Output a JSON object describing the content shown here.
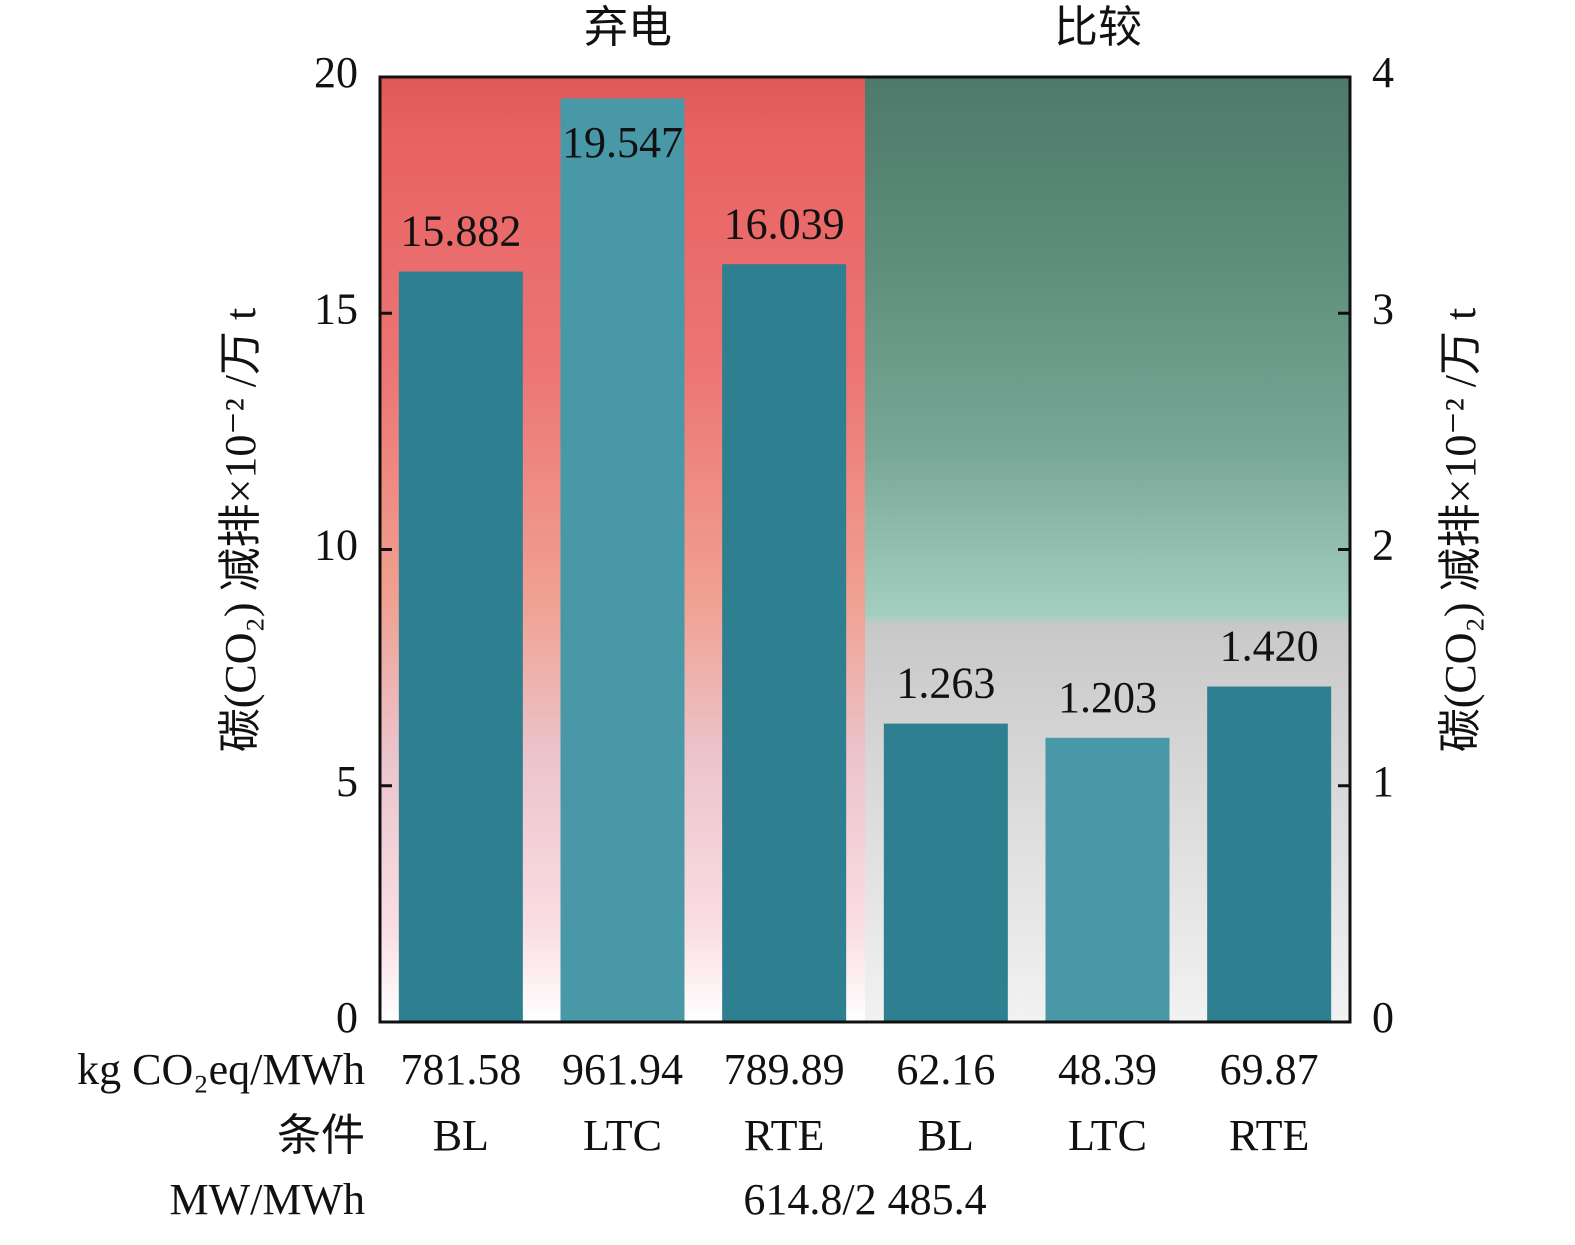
{
  "chart_data": {
    "type": "bar",
    "group_labels": [
      "弃电",
      "比较"
    ],
    "group_label_colors": [
      "#a02050",
      "#4a5a9a"
    ],
    "categories": [
      "BL",
      "LTC",
      "RTE",
      "BL",
      "LTC",
      "RTE"
    ],
    "category_label": "条件",
    "series": [
      {
        "colors": [
          "#2e7f8f",
          "#4898a8",
          "#2e7f8f",
          "#2e7f8f",
          "#4898a8",
          "#2e7f8f"
        ],
        "values": [
          15.882,
          19.547,
          16.039,
          null,
          null,
          null
        ],
        "value_labels": [
          "15.882",
          "19.547",
          "16.039",
          null,
          null,
          null
        ]
      },
      {
        "axis": "y2",
        "colors": [
          "#2e7f8f",
          "#4898a8",
          "#2e7f8f",
          "#2e7f8f",
          "#4898a8",
          "#2e7f8f"
        ],
        "values": [
          null,
          null,
          null,
          1.263,
          1.203,
          1.42
        ],
        "value_labels": [
          null,
          null,
          null,
          "1.263",
          "1.203",
          "1.420"
        ]
      }
    ],
    "ylabel": "碳(CO₂) 减排×10⁻² /万 t",
    "y2label": "碳(CO₂) 减排×10⁻² /万 t",
    "ylim": [
      0,
      20
    ],
    "yticks": [
      0,
      5,
      10,
      15,
      20
    ],
    "y2lim": [
      0,
      4
    ],
    "y2ticks": [
      0,
      1,
      2,
      3,
      4
    ],
    "intensity_label": "kg CO₂eq/MWh",
    "intensity": [
      781.58,
      961.94,
      789.89,
      62.16,
      48.39,
      69.87
    ],
    "capacity_label": "MW/MWh",
    "capacity": "614.8/2 485.4"
  }
}
